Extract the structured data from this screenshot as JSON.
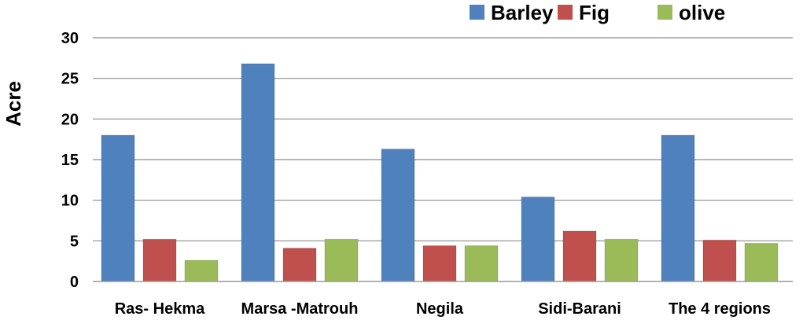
{
  "chart_data": {
    "type": "bar",
    "title": "",
    "xlabel": "",
    "ylabel": "Acre",
    "ylim": [
      0,
      30
    ],
    "yticks": [
      0,
      5,
      10,
      15,
      20,
      25,
      30
    ],
    "grid": true,
    "legend_position": "top-right",
    "categories": [
      "Ras- Hekma",
      "Marsa -Matrouh",
      "Negila",
      "Sidi-Barani",
      "The 4 regions"
    ],
    "series": [
      {
        "name": "Barley",
        "color": "#4f81bd",
        "values": [
          18,
          26.8,
          16.3,
          10.4,
          18
        ]
      },
      {
        "name": "Fig",
        "color": "#c0504d",
        "values": [
          5.2,
          4.1,
          4.4,
          6.2,
          5.1
        ]
      },
      {
        "name": "olive",
        "color": "#9bbb59",
        "values": [
          2.6,
          5.2,
          4.4,
          5.2,
          4.7
        ]
      }
    ]
  }
}
